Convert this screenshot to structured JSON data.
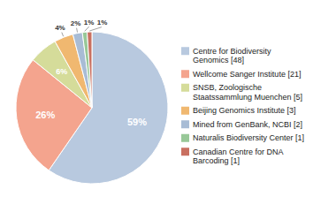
{
  "chart_data": {
    "type": "pie",
    "categories": [
      "Centre for Biodiversity\nGenomics [48]",
      "Wellcome Sanger Institute [21]",
      "SNSB, Zoologische\nStaatssammlung Muenchen [5]",
      "Beijing Genomics Institute [3]",
      "Mined from GenBank, NCBI [2]",
      "Naturalis Biodiversity Center [1]",
      "Canadian Centre for DNA\nBarcoding [1]"
    ],
    "values": [
      59,
      26,
      6,
      4,
      2,
      1,
      1
    ],
    "value_labels": [
      "59%",
      "26%",
      "6%",
      "4%",
      "2%",
      "1%",
      "1%"
    ],
    "colors": [
      "#b8c9df",
      "#f4a48e",
      "#d5dc9a",
      "#f0b870",
      "#a8bcd5",
      "#98c898",
      "#c97060"
    ],
    "data_labels": true,
    "legend": "right"
  }
}
